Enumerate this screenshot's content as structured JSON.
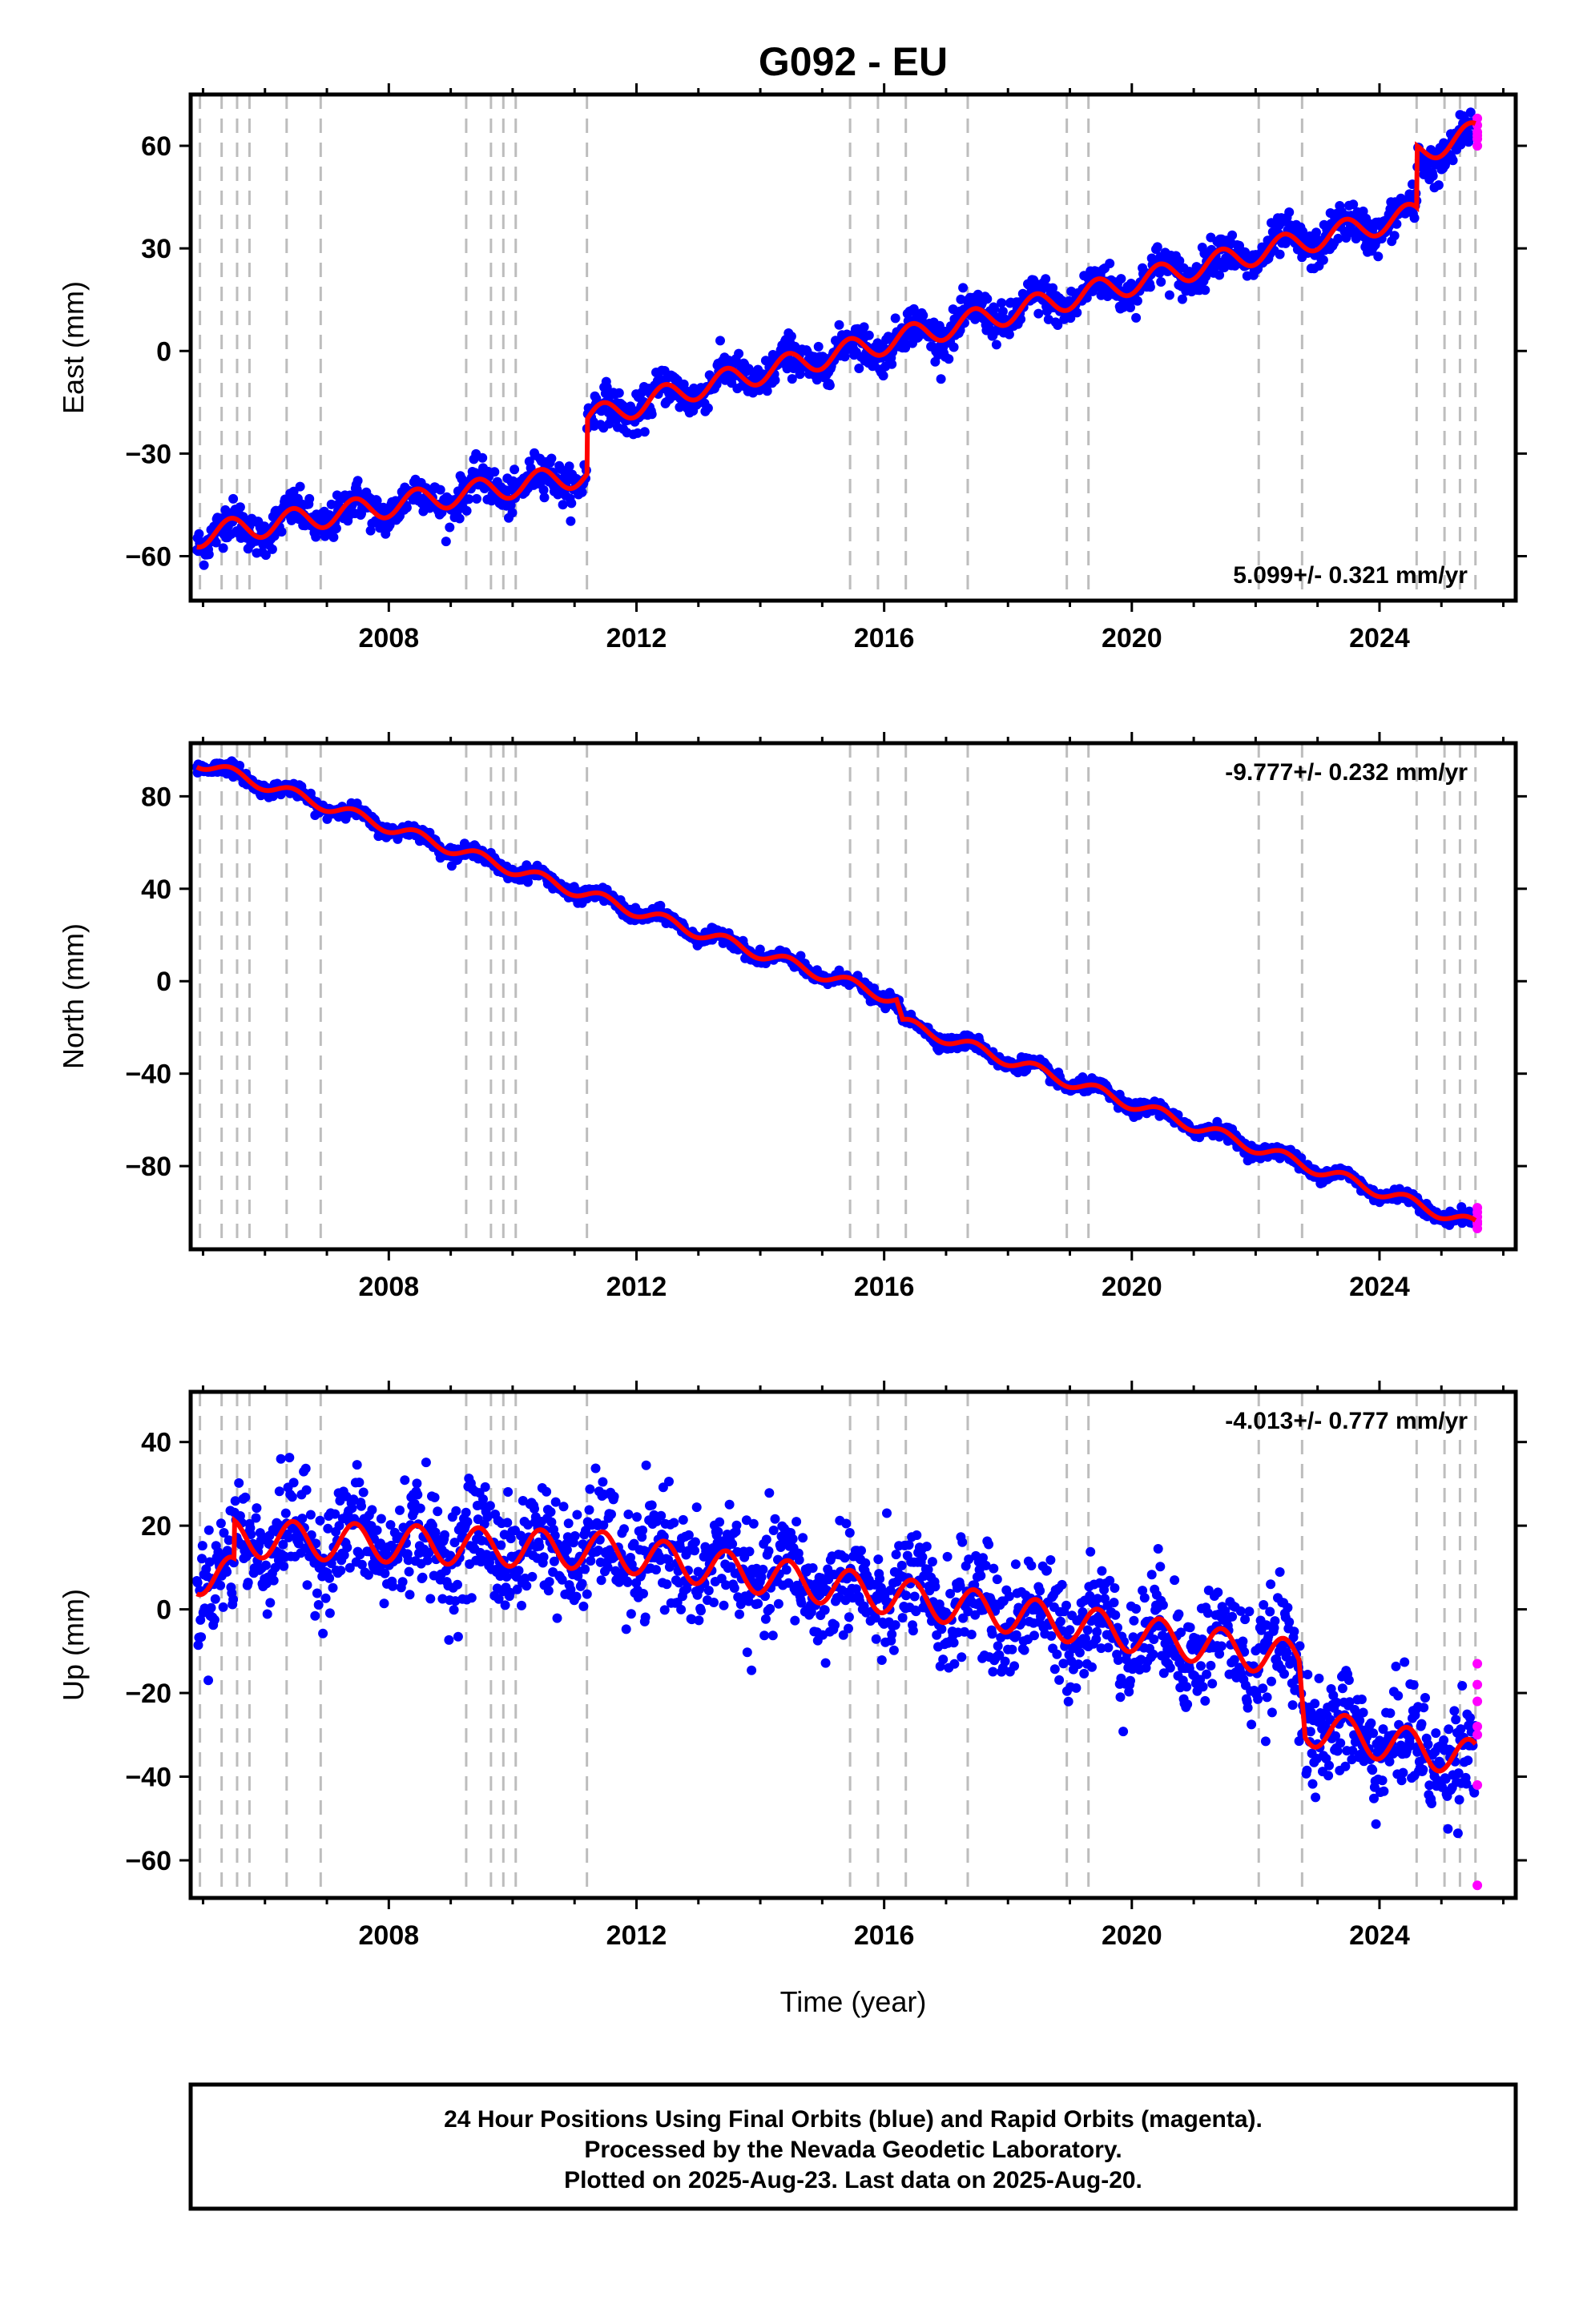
{
  "title": "G092 - EU",
  "footer": {
    "line1": "24 Hour Positions Using Final Orbits (blue) and Rapid Orbits (magenta).",
    "line2": "Processed by the Nevada Geodetic Laboratory.",
    "line3": "Plotted on 2025-Aug-23. Last data on 2025-Aug-20."
  },
  "colors": {
    "final": "#0000ff",
    "rapid": "#ff00ff",
    "model": "#ff0000",
    "event_lines": "#bdbdbd"
  },
  "x_axis_label": "Time (year)",
  "chart_data": [
    {
      "type": "scatter",
      "ylabel": "East (mm)",
      "rate": "5.099+/- 0.321 mm/yr",
      "xlim": [
        2004.8,
        2026.2
      ],
      "ylim": [
        -73,
        75
      ],
      "xticks": [
        2008,
        2012,
        2016,
        2020,
        2024
      ],
      "yticks": [
        -60,
        -30,
        0,
        30,
        60
      ],
      "rate_position": "bottom-right",
      "series_hint": {
        "trend_knots": [
          [
            2004.9,
            -54
          ],
          [
            2011.2,
            -36
          ],
          [
            2011.2,
            -20
          ],
          [
            2012.9,
            -11
          ],
          [
            2024.6,
            40
          ],
          [
            2024.6,
            55
          ],
          [
            2025.6,
            63
          ]
        ],
        "seasonal_amp": 3.5,
        "noise": 2.8,
        "rapid_values": [
          62,
          66,
          60,
          64,
          68,
          63
        ]
      },
      "model_curve": {
        "trend_knots": [
          [
            2004.9,
            -54
          ],
          [
            2011.2,
            -36
          ],
          [
            2011.2,
            -20
          ],
          [
            2012.9,
            -11
          ],
          [
            2024.6,
            40
          ],
          [
            2024.6,
            58
          ],
          [
            2025.6,
            64
          ]
        ],
        "seasonal_amp": 3.5
      }
    },
    {
      "type": "scatter",
      "ylabel": "North (mm)",
      "rate": "-9.777+/- 0.232 mm/yr",
      "xlim": [
        2004.8,
        2026.2
      ],
      "ylim": [
        -116,
        103
      ],
      "xticks": [
        2008,
        2012,
        2016,
        2020,
        2024
      ],
      "yticks": [
        -80,
        -40,
        0,
        40,
        80
      ],
      "rate_position": "top-right",
      "series_hint": {
        "trend_knots": [
          [
            2004.9,
            95
          ],
          [
            2016.2,
            -8
          ],
          [
            2016.3,
            -18
          ],
          [
            2025.6,
            -106
          ]
        ],
        "seasonal_amp": 2.5,
        "noise": 1.4,
        "rapid_values": [
          -98,
          -102,
          -104,
          -107,
          -100,
          -105
        ]
      },
      "model_curve": {
        "trend_knots": [
          [
            2004.9,
            95
          ],
          [
            2016.2,
            -8
          ],
          [
            2016.3,
            -18
          ],
          [
            2025.6,
            -106
          ]
        ],
        "seasonal_amp": 2.5
      }
    },
    {
      "type": "scatter",
      "ylabel": "Up (mm)",
      "rate": "-4.013+/- 0.777 mm/yr",
      "xlim": [
        2004.8,
        2026.2
      ],
      "ylim": [
        -69,
        52
      ],
      "xticks": [
        2008,
        2012,
        2016,
        2020,
        2024
      ],
      "yticks": [
        -60,
        -40,
        -20,
        0,
        20,
        40
      ],
      "rate_position": "top-right",
      "series_hint": {
        "trend_knots": [
          [
            2004.9,
            8
          ],
          [
            2005.5,
            8
          ],
          [
            2005.5,
            17
          ],
          [
            2011.5,
            14
          ],
          [
            2022.7,
            -12
          ],
          [
            2022.8,
            -28
          ],
          [
            2025.6,
            -36
          ]
        ],
        "seasonal_amp": 4.5,
        "noise": 6.5,
        "rapid_values": [
          -13,
          -18,
          -22,
          -28,
          -30,
          -42,
          -66
        ]
      },
      "model_curve": {
        "trend_knots": [
          [
            2004.9,
            8
          ],
          [
            2005.5,
            8
          ],
          [
            2005.5,
            17
          ],
          [
            2011.5,
            14
          ],
          [
            2022.7,
            -12
          ],
          [
            2022.8,
            -28
          ],
          [
            2025.6,
            -36
          ]
        ],
        "seasonal_amp": 4.5
      }
    }
  ],
  "event_lines": [
    2004.95,
    2005.3,
    2005.55,
    2005.75,
    2006.35,
    2006.9,
    2009.25,
    2009.65,
    2009.85,
    2010.05,
    2011.2,
    2015.45,
    2015.9,
    2016.35,
    2017.35,
    2018.95,
    2019.3,
    2022.05,
    2022.75,
    2024.6,
    2025.05,
    2025.3,
    2025.55
  ]
}
